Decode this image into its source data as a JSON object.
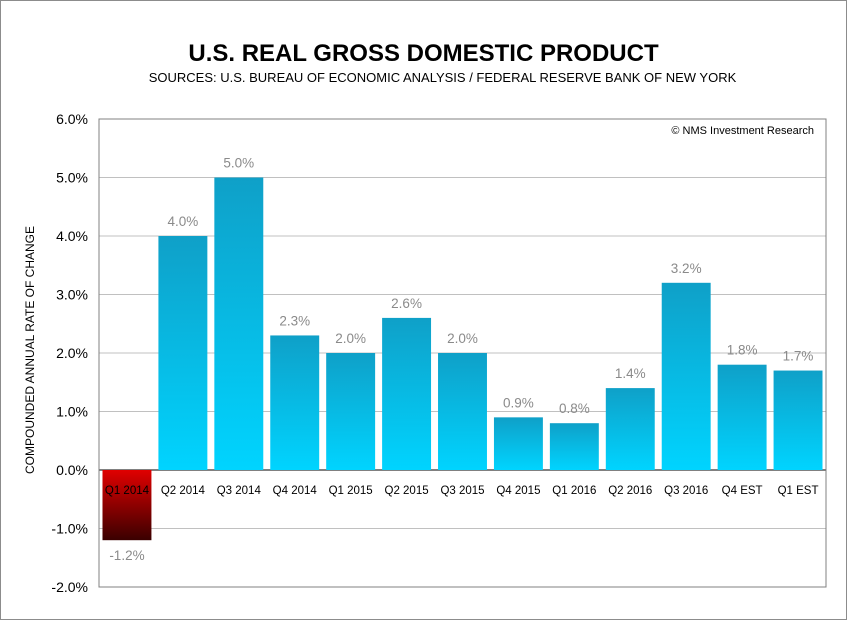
{
  "chart_data": {
    "type": "bar",
    "title": "U.S. REAL GROSS DOMESTIC PRODUCT",
    "subtitle": "SOURCES: U.S. BUREAU OF ECONOMIC ANALYSIS / FEDERAL RESERVE BANK OF NEW YORK",
    "credit": "© NMS Investment Research",
    "xlabel": "",
    "ylabel": "COMPOUNDED ANNUAL RATE OF CHANGE",
    "ylim": [
      -2.0,
      6.0
    ],
    "yticks": [
      -2.0,
      -1.0,
      0.0,
      1.0,
      2.0,
      3.0,
      4.0,
      5.0,
      6.0
    ],
    "ytick_labels": [
      "-2.0%",
      "-1.0%",
      "0.0%",
      "1.0%",
      "2.0%",
      "3.0%",
      "4.0%",
      "5.0%",
      "6.0%"
    ],
    "grid": true,
    "categories": [
      "Q1 2014",
      "Q2 2014",
      "Q3 2014",
      "Q4 2014",
      "Q1 2015",
      "Q2 2015",
      "Q3 2015",
      "Q4 2015",
      "Q1 2016",
      "Q2 2016",
      "Q3 2016",
      "Q4 EST",
      "Q1 EST"
    ],
    "values": [
      -1.2,
      4.0,
      5.0,
      2.3,
      2.0,
      2.6,
      2.0,
      0.9,
      0.8,
      1.4,
      3.2,
      1.8,
      1.7
    ],
    "data_labels": [
      "-1.2%",
      "4.0%",
      "5.0%",
      "2.3%",
      "2.0%",
      "2.6%",
      "2.0%",
      "0.9%",
      "0.8%",
      "1.4%",
      "3.2%",
      "1.8%",
      "1.7%"
    ],
    "colors": {
      "positive_top": "#0fa0c8",
      "positive_bottom": "#00d4ff",
      "negative_top": "#e00000",
      "negative_bottom": "#3a0000",
      "gridline": "#c0c0c0",
      "plot_border": "#808080"
    }
  }
}
